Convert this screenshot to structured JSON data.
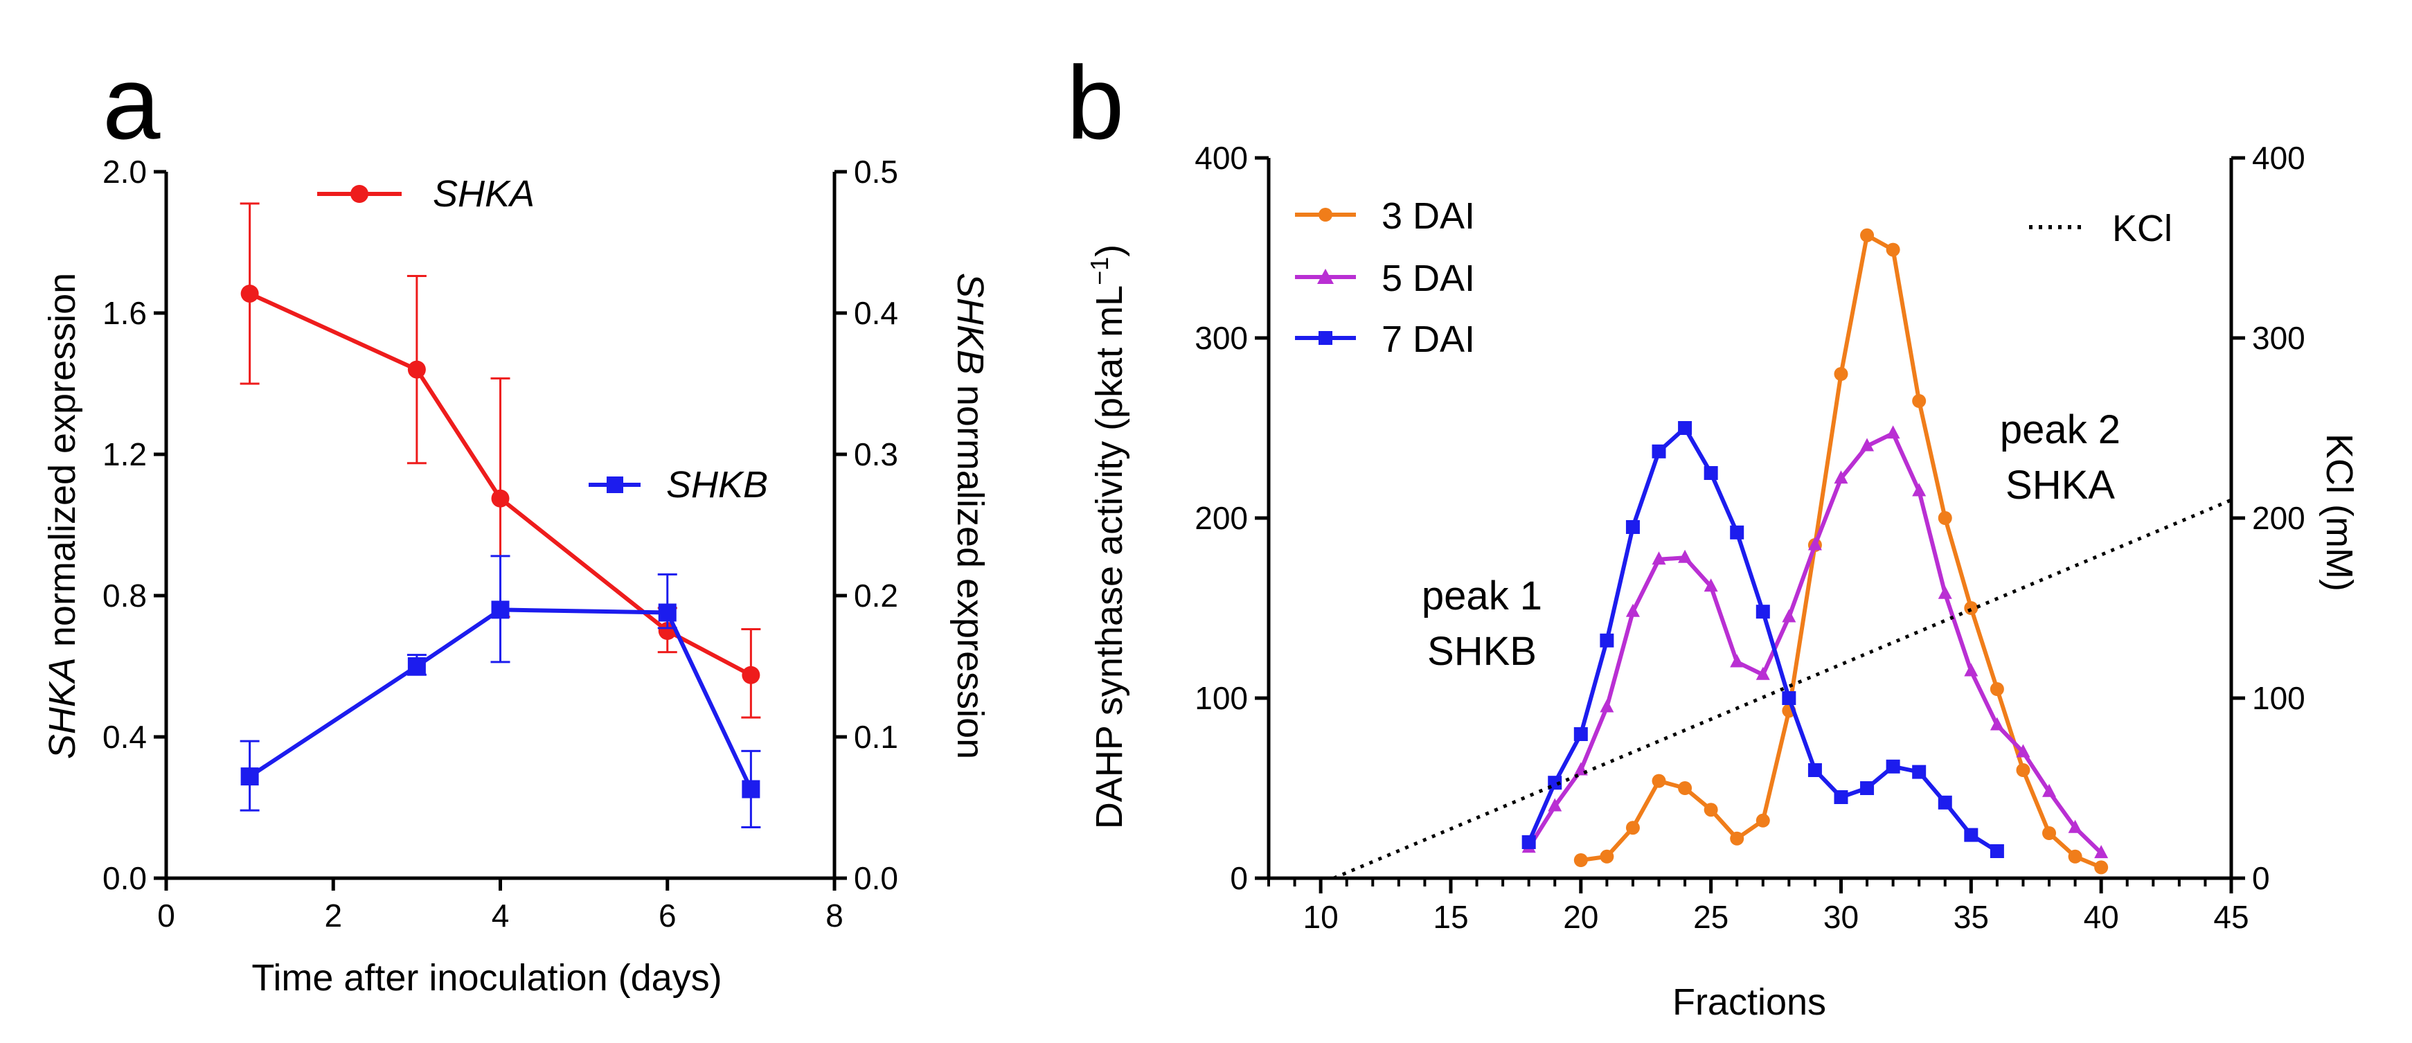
{
  "chart_data": [
    {
      "panel": "a",
      "type": "line",
      "xlabel": "Time after inoculation (days)",
      "ylabel_left": {
        "gene": "SHKA",
        "text": " normalized expression"
      },
      "ylabel_right": {
        "gene": "SHKB",
        "text": " normalized expression"
      },
      "xlim": [
        0,
        8
      ],
      "ylim_left": [
        0,
        2.0
      ],
      "ylim_right": [
        0,
        0.5
      ],
      "x_ticks": [
        "0",
        "2",
        "4",
        "6",
        "8"
      ],
      "y_left_ticks": [
        "0.0",
        "0.4",
        "0.8",
        "1.2",
        "1.6",
        "2.0"
      ],
      "y_right_ticks": [
        "0.0",
        "0.1",
        "0.2",
        "0.3",
        "0.4",
        "0.5"
      ],
      "series": [
        {
          "name": "SHKA",
          "axis": "left",
          "color": "#ee1c1c",
          "marker": "circle",
          "x": [
            1,
            3,
            4,
            6,
            7
          ],
          "y": [
            1.655,
            1.44,
            1.075,
            0.7,
            0.575
          ],
          "err_low": [
            1.4,
            1.175,
            0.74,
            0.64,
            0.455
          ],
          "err_high": [
            1.91,
            1.705,
            1.415,
            0.765,
            0.705
          ]
        },
        {
          "name": "SHKB",
          "axis": "right",
          "color": "#1c1cee",
          "marker": "square",
          "x": [
            1,
            3,
            4,
            6,
            7
          ],
          "y": [
            0.072,
            0.15,
            0.19,
            0.188,
            0.063
          ],
          "err_low": [
            0.048,
            0.144,
            0.153,
            0.177,
            0.036
          ],
          "err_high": [
            0.097,
            0.158,
            0.228,
            0.215,
            0.09
          ]
        }
      ]
    },
    {
      "panel": "b",
      "type": "line",
      "xlabel": "Fractions",
      "ylabel_left": {
        "text": "DAHP synthase activity (pkat mL",
        "sup": "−1",
        "close": ")"
      },
      "ylabel_right": "KCl (mM)",
      "xlim": [
        8,
        45
      ],
      "ylim_left": [
        0,
        400
      ],
      "ylim_right": [
        0,
        400
      ],
      "x_ticks": [
        "10",
        "15",
        "20",
        "25",
        "30",
        "35",
        "40",
        "45"
      ],
      "y_left_ticks": [
        "0",
        "100",
        "200",
        "300",
        "400"
      ],
      "y_right_ticks": [
        "0",
        "100",
        "200",
        "300",
        "400"
      ],
      "series": [
        {
          "name": "3 DAI",
          "color": "#f07d1a",
          "marker": "circle",
          "x": [
            20,
            21,
            22,
            23,
            24,
            25,
            26,
            27,
            28,
            29,
            30,
            31,
            32,
            33,
            34,
            35,
            36,
            37,
            38,
            39,
            40
          ],
          "y": [
            10,
            12,
            28,
            54,
            50,
            38,
            22,
            32,
            93,
            185,
            280,
            357,
            349,
            265,
            200,
            150,
            105,
            60,
            25,
            12,
            6
          ]
        },
        {
          "name": "5 DAI",
          "color": "#b92fd3",
          "marker": "triangle",
          "x": [
            18,
            19,
            20,
            21,
            22,
            23,
            24,
            25,
            26,
            27,
            28,
            29,
            30,
            31,
            32,
            33,
            34,
            35,
            36,
            37,
            38,
            39,
            40
          ],
          "y": [
            17,
            40,
            60,
            95,
            148,
            177,
            178,
            162,
            120,
            113,
            145,
            185,
            222,
            240,
            247,
            215,
            158,
            115,
            85,
            70,
            48,
            28,
            14
          ]
        },
        {
          "name": "7 DAI",
          "color": "#1c1cee",
          "marker": "square",
          "x": [
            18,
            19,
            20,
            21,
            22,
            23,
            24,
            25,
            26,
            27,
            28,
            29,
            30,
            31,
            32,
            33,
            34,
            35,
            36
          ],
          "y": [
            20,
            53,
            80,
            132,
            195,
            237,
            250,
            225,
            192,
            148,
            100,
            60,
            45,
            50,
            62,
            59,
            42,
            24,
            15
          ]
        },
        {
          "name": "KCl",
          "axis": "right",
          "style": "dotted",
          "color": "#000000",
          "x": [
            10.5,
            45
          ],
          "y": [
            0,
            210
          ]
        }
      ],
      "annotations": [
        {
          "lines": [
            "peak 1",
            "SHKB"
          ]
        },
        {
          "lines": [
            "peak 2",
            "SHKA"
          ]
        }
      ]
    }
  ]
}
